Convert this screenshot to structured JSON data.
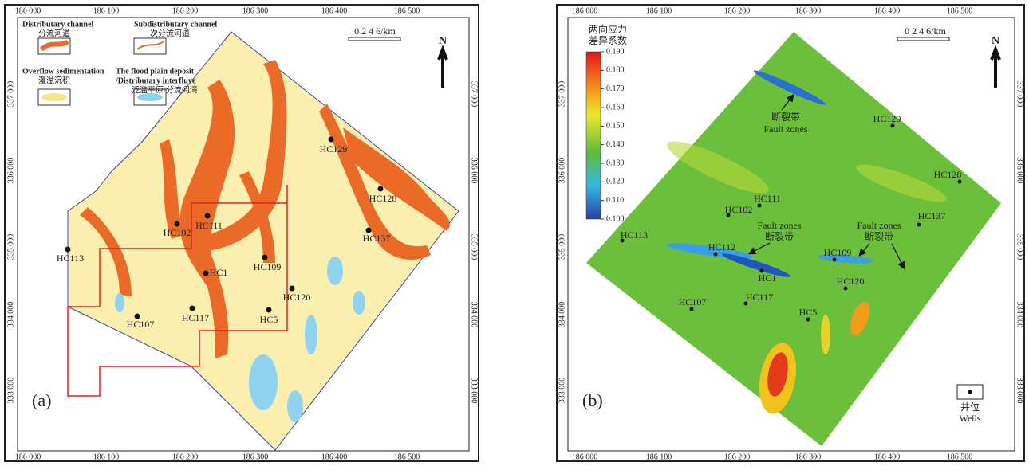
{
  "panel_a": {
    "label": "(a)",
    "x_labels": [
      "186 000",
      "186 100",
      "186 200",
      "186 300",
      "186 400",
      "186 500"
    ],
    "y_labels": [
      "337 000",
      "336 000",
      "335 000",
      "334 000",
      "333 000"
    ],
    "legend": [
      {
        "en": "Distributary channel",
        "zh": "分流河道"
      },
      {
        "en": "Subdistributary channel",
        "zh": "次分流河道"
      },
      {
        "en": "Overflow sedimentation",
        "zh": "漫溢沉积"
      },
      {
        "en": "The flood plain deposit",
        "en2": "/Distributary interfluve",
        "zh": "泛滥平原/分流间湾"
      }
    ],
    "scale": "0   2   4   6/km",
    "north": "N",
    "wells": [
      "HC129",
      "HC128",
      "HC102",
      "HC111",
      "HC137",
      "HC113",
      "HC109",
      "HC1",
      "HC120",
      "HC5",
      "HC117",
      "HC107"
    ]
  },
  "panel_b": {
    "label": "(b)",
    "x_labels": [
      "186 000",
      "186 100",
      "186 200",
      "186 300",
      "186 400",
      "186 500"
    ],
    "y_labels": [
      "337 000",
      "336 000",
      "335 000",
      "334 000",
      "333 000"
    ],
    "colorbar_title": [
      "两向应力",
      "差异系数"
    ],
    "colorbar_range": [
      0.1,
      0.19
    ],
    "colorbar_ticks": [
      {
        "value": 0.19,
        "label": "0.190"
      },
      {
        "value": 0.18,
        "label": "0.180"
      },
      {
        "value": 0.17,
        "label": "0.170"
      },
      {
        "value": 0.16,
        "label": "0.160"
      },
      {
        "value": 0.15,
        "label": "0.150"
      },
      {
        "value": 0.14,
        "label": "0.140"
      },
      {
        "value": 0.13,
        "label": "0.130"
      },
      {
        "value": 0.12,
        "label": "0.120"
      },
      {
        "value": 0.11,
        "label": "0.110"
      },
      {
        "value": 0.1,
        "label": "0.100"
      }
    ],
    "scale": "0   2   4   6/km",
    "north": "N",
    "wells": [
      "HC129",
      "HC128",
      "HC111",
      "HC102",
      "HC137",
      "HC113",
      "HC112",
      "HC1",
      "HC109",
      "HC120",
      "HC107",
      "HC117",
      "HC5"
    ],
    "fault_annotations": [
      {
        "zh": "断裂带",
        "en": "Fault zones"
      },
      {
        "en": "Fault zones",
        "zh": "断裂带"
      },
      {
        "en": "Fault zones",
        "zh": "断裂带"
      }
    ],
    "well_legend": {
      "zh": "井位",
      "en": "Wells"
    }
  }
}
